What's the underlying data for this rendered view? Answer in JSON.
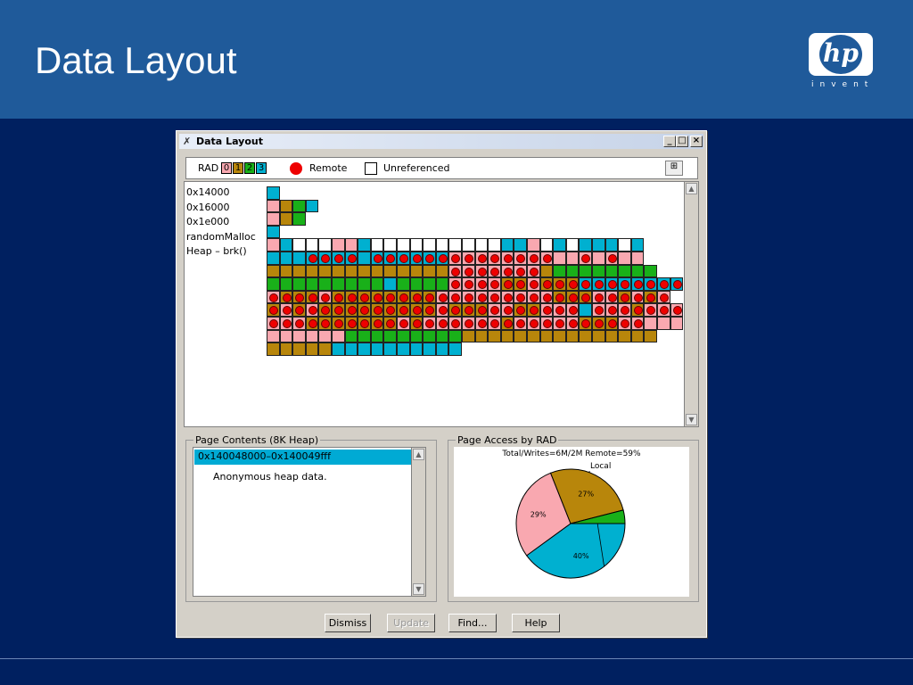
{
  "slide": {
    "title": "Data Layout",
    "logo_text": "hp",
    "logo_tagline": "invent"
  },
  "window": {
    "title": "Data Layout",
    "controls": {
      "minimize": "_",
      "maximize": "□",
      "close": "×"
    }
  },
  "legend": {
    "rad_label": "RAD",
    "rads": [
      {
        "label": "0",
        "color": "#f9a8b0"
      },
      {
        "label": "1",
        "color": "#b8860b"
      },
      {
        "label": "2",
        "color": "#19b019"
      },
      {
        "label": "3",
        "color": "#00b0d0"
      }
    ],
    "remote_label": "Remote",
    "unref_label": "Unreferenced"
  },
  "map": {
    "colors": {
      "P": "#f9a8b0",
      "O": "#b8860b",
      "G": "#19b019",
      "C": "#00b0d0",
      "W": "#ffffff"
    },
    "row_labels": [
      "0x14000",
      "0x16000",
      "0x1e000",
      "randomMalloc",
      "Heap – brk()"
    ],
    "rows": [
      "C",
      "POGC",
      "POG",
      "C",
      "PCWWWPPCWWWWWWWWWWCCPWCWCCCWC",
      "CCCCr Cr Cr Cr CCr Cr Cr Cr Cr Cr Pr Pr Pr Pr Pr Pr Pr Pr PPPr PPr PP",
      "OOOOOOOOOOOOOOPr Pr Pr Pr Pr Pr Pr OGGGGGGGG",
      "GGGGGGGGGCGGGGPr Pr Pr Pr Or Or Pr Or Or Or Cr Cr Cr Cr Cr Cr Cr Cr",
      "Pr Or Or Or Pr Or Or Or Or Or Or Or Or Pr Pr Pr Pr Pr Pr Pr Pr Pr Or Or Or Pr Pr Or Pr Or Pr",
      "Or Pr Or Pr Or Or Or Or Or Or Or Or Or Pr Or Or Or Pr Pr Or Or Pr Pr Pr CPr Pr Pr Or Pr Pr Pr",
      "Pr Pr Pr Or Or Or Or Or Or Or Pr Or Pr Pr Pr Pr Pr Pr Or Pr Pr Pr Pr Pr Or Or Or Pr Pr PPP",
      "PPPPPPGGGGGGGGGOOOOOOOOOOOOOOO",
      "OOOOOCCCCCCCCCC"
    ]
  },
  "page_contents": {
    "title": "Page Contents (8K Heap)",
    "selected": "0x140048000–0x140049fff",
    "description": "Anonymous heap data."
  },
  "page_access": {
    "title": "Page Access by RAD",
    "chart_title": "Total/Writes=6M/2M Remote=59%"
  },
  "chart_data": {
    "type": "pie",
    "title": "Total/Writes=6M/2M Remote=59%",
    "slices": [
      {
        "label": "Local",
        "value": 40,
        "value_label": "40%",
        "color": "#00b0d0"
      },
      {
        "label": "",
        "value": 29,
        "value_label": "29%",
        "color": "#f9a8b0"
      },
      {
        "label": "",
        "value": 27,
        "value_label": "27%",
        "color": "#b8860b"
      },
      {
        "label": "",
        "value": 4,
        "value_label": "",
        "color": "#19b019"
      }
    ]
  },
  "buttons": {
    "dismiss": "Dismiss",
    "update": "Update",
    "find": "Find...",
    "help": "Help"
  }
}
